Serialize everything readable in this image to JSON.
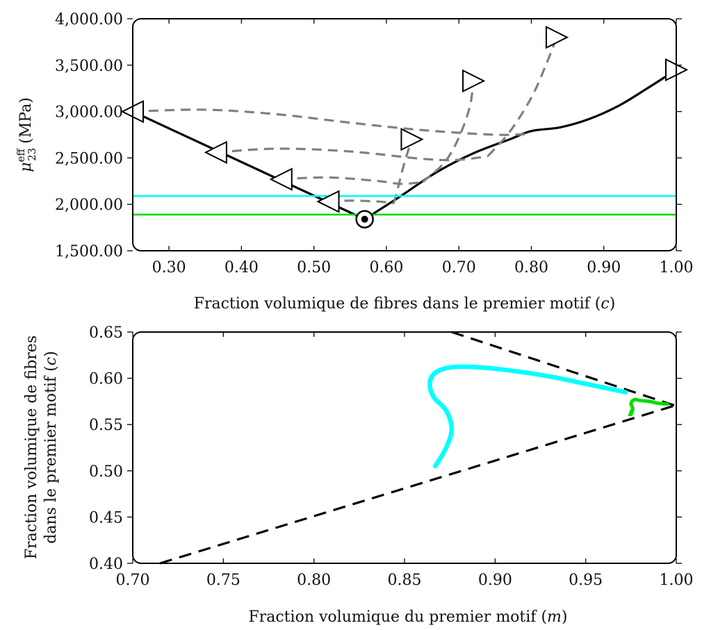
{
  "chart_data": [
    {
      "type": "line",
      "ylabel_main": "μ",
      "ylabel_sub": "23",
      "ylabel_sup": "eff",
      "ylabel_unit": "(MPa)",
      "xlabel_text": "Fraction volumique de fibres dans le premier motif (",
      "xlabel_var": "c",
      "xlabel_close": ")",
      "xlim": [
        0.25,
        1.0
      ],
      "ylim": [
        1500,
        4000
      ],
      "x_ticks": [
        0.3,
        0.4,
        0.5,
        0.6,
        0.7,
        0.8,
        0.9,
        1.0
      ],
      "x_tick_labels": [
        "0.30",
        "0.40",
        "0.50",
        "0.60",
        "0.70",
        "0.80",
        "0.90",
        "1.00"
      ],
      "y_ticks": [
        1500,
        2000,
        2500,
        3000,
        3500,
        4000
      ],
      "y_tick_labels": [
        "1,500.00",
        "2,000.00",
        "2,500.00",
        "3,000.00",
        "3,500.00",
        "4,000.00"
      ],
      "colors": {
        "main": "#000000",
        "dashed": "#808080",
        "cyan": "#00ffff",
        "green": "#00dd00"
      },
      "series": [
        {
          "style": "solid-black",
          "x": [
            0.25,
            0.57
          ],
          "y": [
            3000,
            1840
          ]
        },
        {
          "style": "solid-black",
          "x": [
            0.57,
            0.62,
            0.67,
            0.72,
            0.77,
            0.8,
            0.84,
            0.88,
            0.92,
            0.96,
            1.0
          ],
          "y": [
            1840,
            2090,
            2350,
            2550,
            2700,
            2790,
            2830,
            2920,
            3060,
            3250,
            3450
          ]
        },
        {
          "style": "dashed-grey",
          "x": [
            0.25,
            0.35,
            0.45,
            0.55,
            0.65,
            0.75,
            0.8
          ],
          "y": [
            3000,
            3020,
            2970,
            2880,
            2800,
            2750,
            2760
          ]
        },
        {
          "style": "dashed-grey",
          "x": [
            0.365,
            0.45,
            0.55,
            0.65,
            0.7,
            0.74
          ],
          "y": [
            2560,
            2600,
            2570,
            2490,
            2480,
            2520
          ]
        },
        {
          "style": "dashed-grey",
          "x": [
            0.455,
            0.52,
            0.59,
            0.62,
            0.65
          ],
          "y": [
            2270,
            2290,
            2250,
            2220,
            2240
          ]
        },
        {
          "style": "dashed-grey",
          "x": [
            0.52,
            0.55,
            0.59,
            0.61
          ],
          "y": [
            2030,
            2040,
            2030,
            2010
          ]
        },
        {
          "style": "dashed-grey",
          "x": [
            0.61,
            0.615,
            0.625,
            0.635
          ],
          "y": [
            2010,
            2150,
            2450,
            2700
          ]
        },
        {
          "style": "dashed-grey",
          "x": [
            0.65,
            0.68,
            0.7,
            0.715,
            0.72
          ],
          "y": [
            2240,
            2450,
            2720,
            3050,
            3330
          ]
        },
        {
          "style": "dashed-grey",
          "x": [
            0.74,
            0.77,
            0.8,
            0.82,
            0.835
          ],
          "y": [
            2520,
            2780,
            3150,
            3500,
            3800
          ]
        },
        {
          "style": "hline-cyan",
          "x": [
            0.25,
            1.0
          ],
          "y": [
            2090,
            2090
          ]
        },
        {
          "style": "hline-green",
          "x": [
            0.25,
            1.0
          ],
          "y": [
            1890,
            1890
          ]
        }
      ],
      "markers_left": [
        {
          "x": 0.25,
          "y": 3000
        },
        {
          "x": 0.365,
          "y": 2560
        },
        {
          "x": 0.455,
          "y": 2270
        },
        {
          "x": 0.52,
          "y": 2030
        }
      ],
      "markers_right": [
        {
          "x": 0.635,
          "y": 2700
        },
        {
          "x": 0.72,
          "y": 3330
        },
        {
          "x": 0.835,
          "y": 3800
        },
        {
          "x": 1.0,
          "y": 3450
        }
      ],
      "marker_circle": {
        "x": 0.57,
        "y": 1840
      }
    },
    {
      "type": "line",
      "ylabel_line1_text": "Fraction volumique de fibres",
      "ylabel_line2_text": "dans le premier motif (",
      "ylabel_var": "c",
      "ylabel_close": ")",
      "xlabel_text": "Fraction volumique du premier motif (",
      "xlabel_var": "m",
      "xlabel_close": ")",
      "xlim": [
        0.7,
        1.0
      ],
      "ylim": [
        0.4,
        0.65
      ],
      "x_ticks": [
        0.7,
        0.75,
        0.8,
        0.85,
        0.9,
        0.95,
        1.0
      ],
      "x_tick_labels": [
        "0.70",
        "0.75",
        "0.80",
        "0.85",
        "0.90",
        "0.95",
        "1.00"
      ],
      "y_ticks": [
        0.4,
        0.45,
        0.5,
        0.55,
        0.6,
        0.65
      ],
      "y_tick_labels": [
        "0.40",
        "0.45",
        "0.50",
        "0.55",
        "0.60",
        "0.65"
      ],
      "colors": {
        "dashed": "#000000",
        "cyan": "#00ffff",
        "green": "#00dd00"
      },
      "series": [
        {
          "style": "dashed-black",
          "x": [
            0.715,
            1.0
          ],
          "y": [
            0.4,
            0.571
          ]
        },
        {
          "style": "dashed-black",
          "x": [
            0.876,
            1.0
          ],
          "y": [
            0.65,
            0.57
          ]
        },
        {
          "style": "thick-cyan",
          "x": [
            0.867,
            0.873,
            0.876,
            0.873,
            0.866,
            0.864,
            0.867,
            0.876,
            0.89,
            0.91,
            0.93,
            0.95,
            0.972
          ],
          "y": [
            0.505,
            0.525,
            0.545,
            0.565,
            0.58,
            0.595,
            0.606,
            0.612,
            0.612,
            0.608,
            0.602,
            0.594,
            0.585
          ]
        },
        {
          "style": "thick-green",
          "x": [
            0.975,
            0.976,
            0.975,
            0.977,
            0.98,
            0.985,
            0.99,
            0.995
          ],
          "y": [
            0.561,
            0.567,
            0.573,
            0.577,
            0.576,
            0.575,
            0.573,
            0.572
          ]
        },
        {
          "style": "thin-green",
          "x": [
            0.974,
            0.975,
            0.976
          ],
          "y": [
            0.56,
            0.565,
            0.568
          ]
        }
      ]
    }
  ]
}
